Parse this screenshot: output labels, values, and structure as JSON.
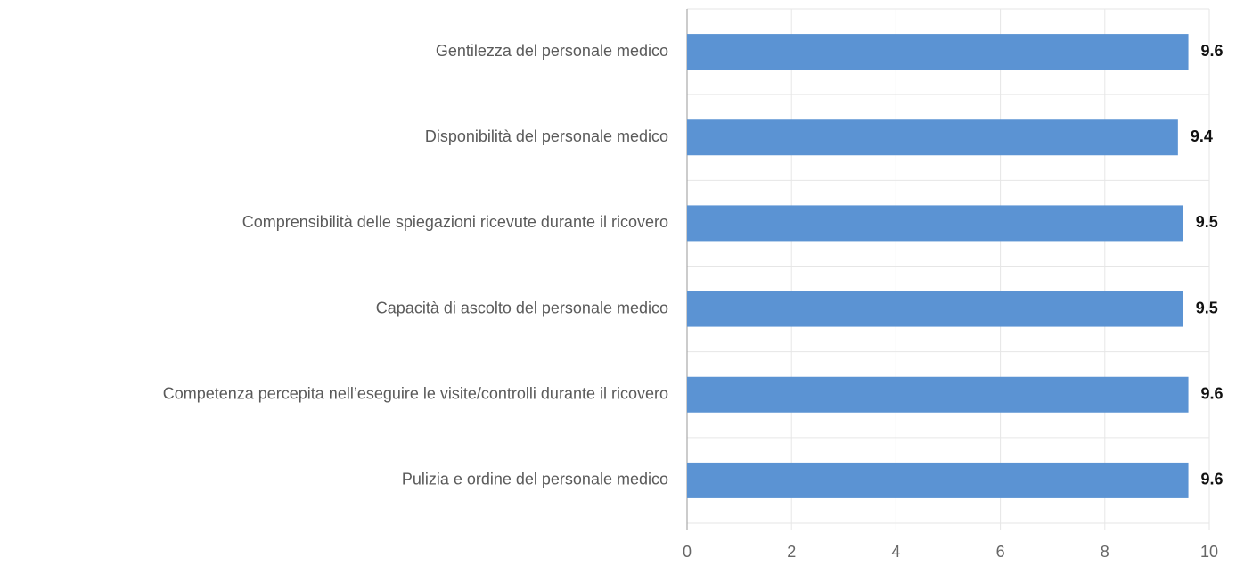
{
  "chart_data": {
    "type": "hbar",
    "categories": [
      "Gentilezza del personale medico",
      "Disponibilità del personale medico",
      "Comprensibilità delle spiegazioni ricevute durante il ricovero",
      "Capacità di ascolto del personale medico",
      "Competenza percepita nell’eseguire le visite/controlli durante il ricovero",
      "Pulizia e ordine del personale medico"
    ],
    "values": [
      9.6,
      9.4,
      9.5,
      9.5,
      9.6,
      9.6
    ],
    "color": "#5b93d3",
    "xlim": [
      0,
      10
    ],
    "xticks": [
      0,
      2,
      4,
      6,
      8,
      10
    ],
    "grid": true
  }
}
